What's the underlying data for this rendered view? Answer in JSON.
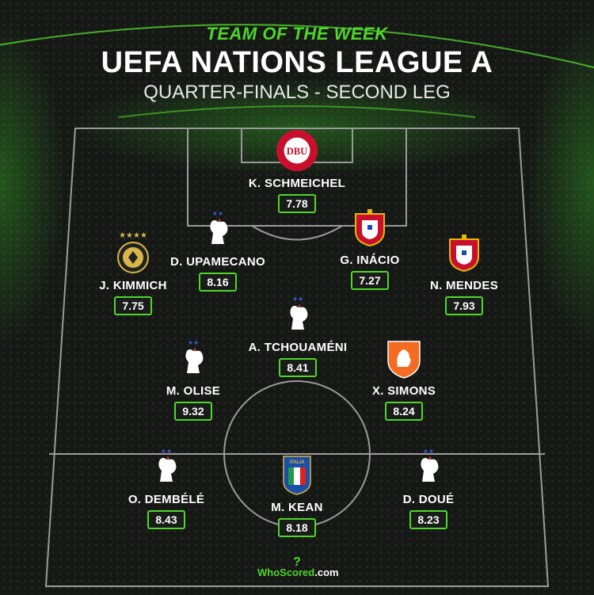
{
  "header": {
    "kicker": "TEAM OF THE WEEK",
    "title": "UEFA NATIONS LEAGUE A",
    "subtitle": "QUARTER-FINALS - SECOND LEG"
  },
  "colors": {
    "accent": "#4fd62a",
    "background": "#161816"
  },
  "players": [
    {
      "name": "K. SCHMEICHEL",
      "rating": "7.78",
      "team": "denmark",
      "crest_text": "DBU"
    },
    {
      "name": "D. UPAMECANO",
      "rating": "8.16",
      "team": "france"
    },
    {
      "name": "G. INÁCIO",
      "rating": "7.27",
      "team": "portugal"
    },
    {
      "name": "J. KIMMICH",
      "rating": "7.75",
      "team": "germany"
    },
    {
      "name": "N. MENDES",
      "rating": "7.93",
      "team": "portugal"
    },
    {
      "name": "A. TCHOUAMÉNI",
      "rating": "8.41",
      "team": "france"
    },
    {
      "name": "M. OLISE",
      "rating": "9.32",
      "team": "france"
    },
    {
      "name": "X. SIMONS",
      "rating": "8.24",
      "team": "netherlands"
    },
    {
      "name": "O. DEMBÉLÉ",
      "rating": "8.43",
      "team": "france"
    },
    {
      "name": "M. KEAN",
      "rating": "8.18",
      "team": "italy",
      "crest_text": "ITALIA"
    },
    {
      "name": "D. DOUÉ",
      "rating": "8.23",
      "team": "france"
    }
  ],
  "logo": {
    "brand": "WhoScored",
    "suffix": ".com"
  }
}
